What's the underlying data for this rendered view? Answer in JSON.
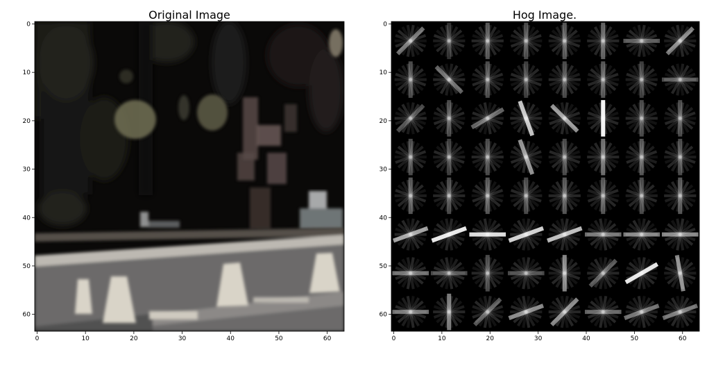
{
  "chart_data": [
    {
      "type": "heatmap",
      "title": "Original Image",
      "xlabel": "",
      "ylabel": "",
      "xlim": [
        0,
        64
      ],
      "ylim": [
        64,
        0
      ],
      "x_ticks": [
        0,
        10,
        20,
        30,
        40,
        50,
        60
      ],
      "y_ticks": [
        0,
        10,
        20,
        30,
        40,
        50,
        60
      ],
      "grid": false,
      "colors": {
        "background": "#0a0908",
        "foliage": "#2b2a22",
        "leaf_highlight": "#6d6b52",
        "branch": "#5a4a48",
        "rail": "#bdb9b2",
        "road": "#6c6b6b",
        "post": "#d9d4c8"
      }
    },
    {
      "type": "heatmap",
      "title": "Hog Image.",
      "xlabel": "",
      "ylabel": "",
      "xlim": [
        0,
        64
      ],
      "ylim": [
        64,
        0
      ],
      "x_ticks": [
        0,
        10,
        20,
        30,
        40,
        50,
        60
      ],
      "y_ticks": [
        0,
        10,
        20,
        30,
        40,
        50,
        60
      ],
      "grid": false,
      "cell_size": 8,
      "dominant_orientation_deg": [
        [
          45,
          90,
          90,
          90,
          90,
          90,
          0,
          45
        ],
        [
          90,
          135,
          90,
          90,
          90,
          90,
          90,
          0
        ],
        [
          45,
          90,
          30,
          110,
          135,
          90,
          90,
          90
        ],
        [
          90,
          90,
          90,
          110,
          90,
          90,
          90,
          90
        ],
        [
          90,
          90,
          90,
          90,
          90,
          90,
          90,
          90
        ],
        [
          20,
          20,
          0,
          20,
          20,
          0,
          0,
          0
        ],
        [
          0,
          0,
          90,
          0,
          90,
          45,
          30,
          100
        ],
        [
          0,
          90,
          45,
          20,
          45,
          0,
          20,
          20
        ]
      ],
      "strength": [
        [
          0.45,
          0.2,
          0.35,
          0.3,
          0.35,
          0.4,
          0.35,
          0.5
        ],
        [
          0.3,
          0.4,
          0.3,
          0.25,
          0.3,
          0.35,
          0.25,
          0.3
        ],
        [
          0.3,
          0.3,
          0.4,
          0.8,
          0.6,
          1.0,
          0.3,
          0.3
        ],
        [
          0.3,
          0.25,
          0.3,
          0.6,
          0.3,
          0.45,
          0.35,
          0.3
        ],
        [
          0.35,
          0.3,
          0.35,
          0.3,
          0.35,
          0.35,
          0.3,
          0.35
        ],
        [
          0.65,
          0.95,
          0.9,
          0.85,
          0.75,
          0.45,
          0.5,
          0.55
        ],
        [
          0.45,
          0.3,
          0.3,
          0.3,
          0.55,
          0.35,
          0.95,
          0.55
        ],
        [
          0.45,
          0.5,
          0.35,
          0.55,
          0.55,
          0.4,
          0.45,
          0.45
        ]
      ],
      "colors": {
        "background": "#000000",
        "gradient": "#ffffff"
      }
    }
  ]
}
